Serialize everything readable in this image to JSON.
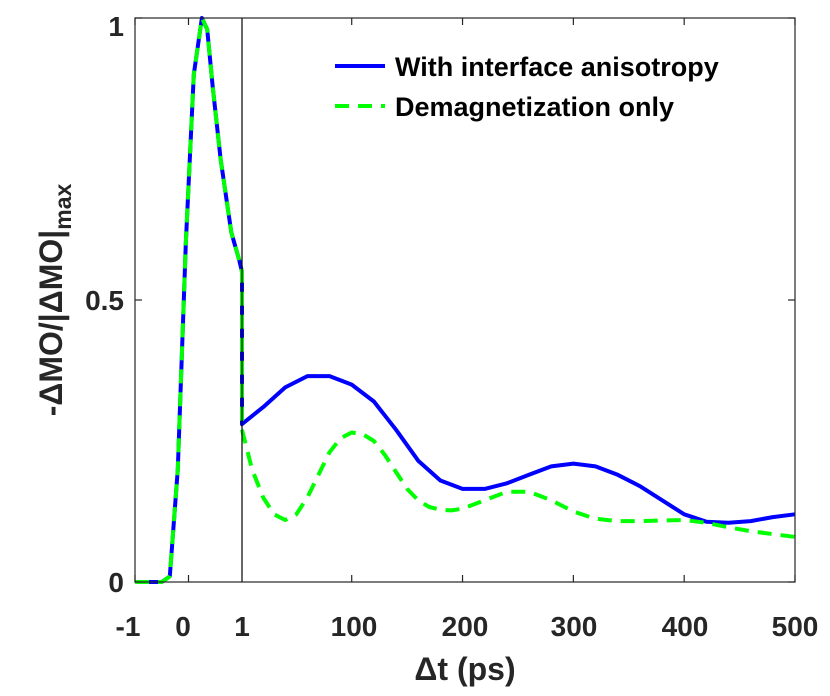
{
  "chart_data": {
    "type": "line",
    "title": "",
    "xlabel": "Δt (ps)",
    "ylabel_main": "-ΔMO/|ΔMO|",
    "ylabel_sub": "max",
    "x_tick_labels": [
      "-1",
      "0",
      "1",
      "100",
      "200",
      "300",
      "400",
      "500"
    ],
    "y_tick_labels": [
      "0",
      "0.5",
      "1"
    ],
    "y_ticks": [
      0,
      0.5,
      1
    ],
    "ylim": [
      0,
      1
    ],
    "x_axis_note": "broken axis: -1 to 1 ps linear segment, then 1 to 500 ps linear segment",
    "x_segment_1_range": [
      -1,
      1
    ],
    "x_segment_2_range": [
      1,
      500
    ],
    "divider_at": 1,
    "grid": false,
    "legend_position": "top-right",
    "series": [
      {
        "name": "With interface anisotropy",
        "color": "#0000ff",
        "style": "solid",
        "x": [
          -1,
          -0.7,
          -0.5,
          -0.35,
          -0.2,
          -0.05,
          0.1,
          0.25,
          0.35,
          0.45,
          0.6,
          0.8,
          0.95,
          1.0,
          1.0,
          20,
          40,
          60,
          80,
          100,
          120,
          140,
          160,
          180,
          200,
          220,
          240,
          260,
          280,
          300,
          320,
          340,
          360,
          380,
          400,
          420,
          440,
          460,
          480,
          500
        ],
        "y": [
          0,
          0,
          0,
          0.01,
          0.2,
          0.6,
          0.9,
          1.0,
          0.98,
          0.88,
          0.75,
          0.62,
          0.57,
          0.55,
          0.28,
          0.31,
          0.345,
          0.365,
          0.365,
          0.35,
          0.32,
          0.27,
          0.215,
          0.18,
          0.165,
          0.165,
          0.175,
          0.19,
          0.205,
          0.21,
          0.205,
          0.19,
          0.17,
          0.145,
          0.12,
          0.107,
          0.105,
          0.108,
          0.115,
          0.12
        ]
      },
      {
        "name": "Demagnetization only",
        "color": "#00ff00",
        "style": "dashed",
        "x": [
          -1,
          -0.7,
          -0.5,
          -0.35,
          -0.2,
          -0.05,
          0.1,
          0.25,
          0.35,
          0.45,
          0.6,
          0.8,
          0.95,
          1.0,
          1.0,
          10,
          20,
          30,
          40,
          50,
          60,
          70,
          80,
          90,
          100,
          110,
          120,
          130,
          140,
          150,
          160,
          170,
          180,
          190,
          200,
          220,
          240,
          260,
          280,
          300,
          320,
          340,
          360,
          380,
          400,
          420,
          440,
          460,
          480,
          500
        ],
        "y": [
          0,
          0,
          0,
          0.01,
          0.2,
          0.6,
          0.9,
          1.0,
          0.98,
          0.88,
          0.75,
          0.62,
          0.57,
          0.55,
          0.27,
          0.2,
          0.15,
          0.12,
          0.11,
          0.12,
          0.15,
          0.19,
          0.23,
          0.255,
          0.265,
          0.262,
          0.25,
          0.225,
          0.195,
          0.165,
          0.145,
          0.133,
          0.128,
          0.127,
          0.13,
          0.145,
          0.16,
          0.16,
          0.145,
          0.125,
          0.112,
          0.108,
          0.108,
          0.109,
          0.11,
          0.105,
          0.097,
          0.09,
          0.085,
          0.08
        ]
      }
    ]
  }
}
